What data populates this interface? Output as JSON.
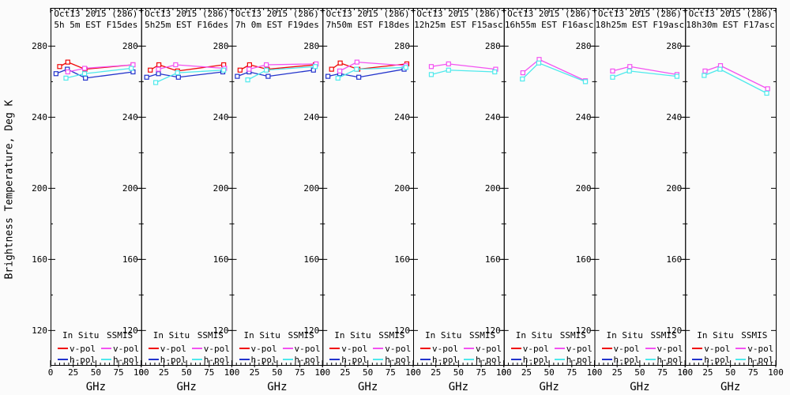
{
  "figure": {
    "ylabel": "Brightness Temperature, Deg K",
    "xlabel": "GHz",
    "background": "#fbfbfb",
    "axis_color": "#000000",
    "colors": {
      "insitu_v": "#f00606",
      "insitu_h": "#2233cc",
      "ssmis_v": "#f352f1",
      "ssmis_h": "#4fe9ec"
    },
    "legend": {
      "columns": [
        {
          "header": "In Situ",
          "entries": [
            {
              "label": "v-pol",
              "color": "insitu_v"
            },
            {
              "label": "h-pol",
              "color": "insitu_h"
            }
          ]
        },
        {
          "header": "SSMIS",
          "entries": [
            {
              "label": "v-pol",
              "color": "ssmis_v"
            },
            {
              "label": "h-pol",
              "color": "ssmis_h"
            }
          ]
        }
      ]
    },
    "y_ticks": [
      120,
      160,
      200,
      240,
      280
    ],
    "y_minor_step": 20,
    "x_ticks": [
      0,
      25,
      50,
      75,
      100
    ],
    "x_minor_step": 5,
    "ylim": [
      100.6,
      301.5
    ],
    "xlim": [
      0,
      100
    ]
  },
  "chart_data": [
    {
      "type": "line",
      "title_line1": "Oct13 2015 (286)",
      "title_line2": "5h 5m EST F15des",
      "series": [
        {
          "name": "In Situ v-pol",
          "color": "insitu_v",
          "points": [
            [
              10,
              268.5
            ],
            [
              19,
              271
            ],
            [
              38,
              267
            ],
            [
              91,
              269.5
            ]
          ]
        },
        {
          "name": "In Situ h-pol",
          "color": "insitu_h",
          "points": [
            [
              6,
              264.5
            ],
            [
              18.5,
              267
            ],
            [
              38.5,
              262
            ],
            [
              91,
              265.5
            ]
          ]
        },
        {
          "name": "SSMIS v-pol",
          "color": "ssmis_v",
          "points": [
            [
              19,
              265.5
            ],
            [
              37.5,
              267.5
            ],
            [
              91,
              269.5
            ]
          ]
        },
        {
          "name": "SSMIS h-pol",
          "color": "ssmis_h",
          "points": [
            [
              17,
              262
            ],
            [
              37.5,
              264.5
            ],
            [
              89,
              267.5
            ]
          ]
        }
      ]
    },
    {
      "type": "line",
      "title_line1": "Oct13 2015 (286)",
      "title_line2": "5h25m EST F16des",
      "series": [
        {
          "name": "In Situ v-pol",
          "color": "insitu_v",
          "points": [
            [
              10,
              266.5
            ],
            [
              19.5,
              269.5
            ],
            [
              40,
              266
            ],
            [
              91,
              269.5
            ]
          ]
        },
        {
          "name": "In Situ h-pol",
          "color": "insitu_h",
          "points": [
            [
              6,
              262.5
            ],
            [
              19,
              264.5
            ],
            [
              41,
              262.5
            ],
            [
              90,
              265.5
            ]
          ]
        },
        {
          "name": "SSMIS v-pol",
          "color": "ssmis_v",
          "points": [
            [
              19,
              267
            ],
            [
              38,
              269.5
            ],
            [
              92,
              267.5
            ]
          ]
        },
        {
          "name": "SSMIS h-pol",
          "color": "ssmis_h",
          "points": [
            [
              16,
              259.5
            ],
            [
              40,
              265
            ],
            [
              91,
              266.5
            ]
          ]
        }
      ]
    },
    {
      "type": "line",
      "title_line1": "Oct13 2015 (286)",
      "title_line2": "7h 0m EST F19des",
      "series": [
        {
          "name": "In Situ v-pol",
          "color": "insitu_v",
          "points": [
            [
              9,
              266.5
            ],
            [
              19.5,
              269.5
            ],
            [
              39,
              267
            ],
            [
              92,
              269.5
            ]
          ]
        },
        {
          "name": "In Situ h-pol",
          "color": "insitu_h",
          "points": [
            [
              6,
              263
            ],
            [
              19,
              265.5
            ],
            [
              40,
              263
            ],
            [
              90,
              266.5
            ]
          ]
        },
        {
          "name": "SSMIS v-pol",
          "color": "ssmis_v",
          "points": [
            [
              19,
              267
            ],
            [
              38,
              269.5
            ],
            [
              93,
              270
            ]
          ]
        },
        {
          "name": "SSMIS h-pol",
          "color": "ssmis_h",
          "points": [
            [
              17.5,
              261
            ],
            [
              38,
              266.5
            ],
            [
              92,
              268.5
            ]
          ]
        }
      ]
    },
    {
      "type": "line",
      "title_line1": "Oct13 2015 (286)",
      "title_line2": "7h50m EST F18des",
      "series": [
        {
          "name": "In Situ v-pol",
          "color": "insitu_v",
          "points": [
            [
              10,
              267
            ],
            [
              19.5,
              270.5
            ],
            [
              39,
              267
            ],
            [
              93,
              270
            ]
          ]
        },
        {
          "name": "In Situ h-pol",
          "color": "insitu_h",
          "points": [
            [
              6,
              263
            ],
            [
              19,
              264.5
            ],
            [
              40,
              262.5
            ],
            [
              90,
              267
            ]
          ]
        },
        {
          "name": "SSMIS v-pol",
          "color": "ssmis_v",
          "points": [
            [
              19,
              266
            ],
            [
              38,
              271
            ],
            [
              92,
              269
            ]
          ]
        },
        {
          "name": "SSMIS h-pol",
          "color": "ssmis_h",
          "points": [
            [
              17,
              262
            ],
            [
              37.5,
              267
            ],
            [
              92,
              268
            ]
          ]
        }
      ]
    },
    {
      "type": "line",
      "title_line1": "Oct13 2015 (286)",
      "title_line2": "12h25m EST F15asc",
      "series": [
        {
          "name": "SSMIS v-pol",
          "color": "ssmis_v",
          "points": [
            [
              20,
              268.5
            ],
            [
              39,
              270
            ],
            [
              91,
              267
            ]
          ]
        },
        {
          "name": "SSMIS h-pol",
          "color": "ssmis_h",
          "points": [
            [
              20,
              264
            ],
            [
              39,
              266.5
            ],
            [
              90,
              265.5
            ]
          ]
        }
      ]
    },
    {
      "type": "line",
      "title_line1": "Oct13 2015 (286)",
      "title_line2": "16h55m EST F16asc",
      "series": [
        {
          "name": "SSMIS v-pol",
          "color": "ssmis_v",
          "points": [
            [
              21,
              265
            ],
            [
              39,
              272.5
            ],
            [
              90,
              260.5
            ]
          ]
        },
        {
          "name": "SSMIS h-pol",
          "color": "ssmis_h",
          "points": [
            [
              20.5,
              261.5
            ],
            [
              38.5,
              270.5
            ],
            [
              90,
              260
            ]
          ]
        }
      ]
    },
    {
      "type": "line",
      "title_line1": "Oct13 2015 (286)",
      "title_line2": "18h25m EST F19asc",
      "series": [
        {
          "name": "SSMIS v-pol",
          "color": "ssmis_v",
          "points": [
            [
              20,
              266
            ],
            [
              39,
              268.5
            ],
            [
              91,
              264
            ]
          ]
        },
        {
          "name": "SSMIS h-pol",
          "color": "ssmis_h",
          "points": [
            [
              20,
              262.5
            ],
            [
              38.5,
              266
            ],
            [
              91,
              263
            ]
          ]
        }
      ]
    },
    {
      "type": "line",
      "title_line1": "Oct13 2015 (286)",
      "title_line2": "18h30m EST F17asc",
      "series": [
        {
          "name": "SSMIS v-pol",
          "color": "ssmis_v",
          "points": [
            [
              22,
              266
            ],
            [
              39,
              269
            ],
            [
              91,
              256
            ]
          ]
        },
        {
          "name": "SSMIS h-pol",
          "color": "ssmis_h",
          "points": [
            [
              21,
              263.5
            ],
            [
              38.5,
              267
            ],
            [
              90,
              253.5
            ]
          ]
        }
      ]
    }
  ]
}
